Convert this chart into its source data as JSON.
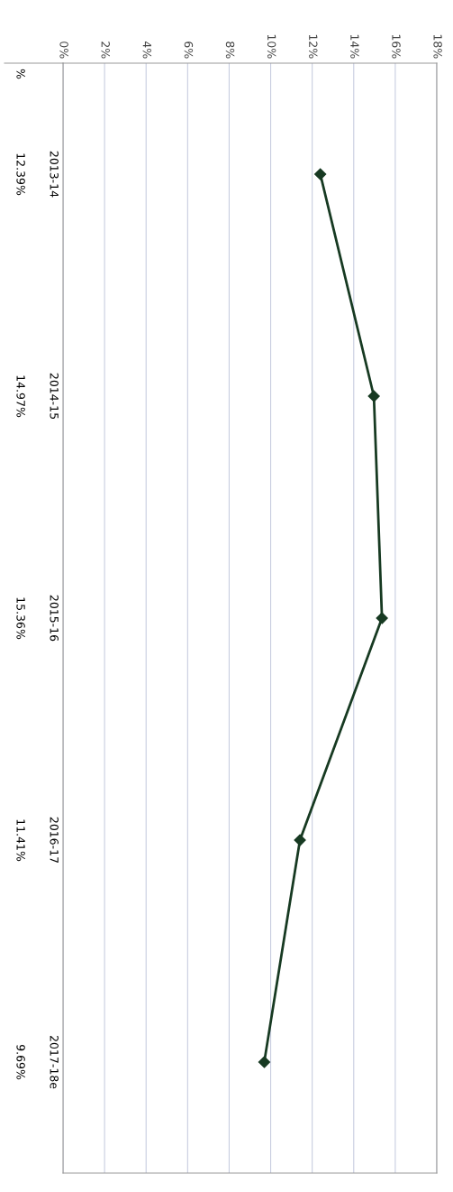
{
  "chart_data": {
    "type": "line",
    "categories": [
      "2013-14",
      "2014-15",
      "2015-16",
      "2016-17",
      "2017-18e"
    ],
    "series": [
      {
        "color": "#173a22",
        "values": [
          12.39,
          14.97,
          15.36,
          11.41,
          9.69
        ],
        "value_labels": [
          "12.39%",
          "14.97%",
          "15.36%",
          "11.41%",
          "9.69%"
        ]
      }
    ],
    "xlim": [
      0,
      18
    ],
    "xticks": [
      {
        "value": 0,
        "label": "0%"
      },
      {
        "value": 2,
        "label": "2%"
      },
      {
        "value": 4,
        "label": "4%"
      },
      {
        "value": 6,
        "label": "6%"
      },
      {
        "value": 8,
        "label": "8%"
      },
      {
        "value": 10,
        "label": "10%"
      },
      {
        "value": 12,
        "label": "12%"
      },
      {
        "value": 14,
        "label": "14%"
      },
      {
        "value": 16,
        "label": "16%"
      },
      {
        "value": 18,
        "label": "18%"
      }
    ],
    "annotations": [
      "%"
    ],
    "orientation": "horizontal",
    "grid": "x",
    "marker": "diamond",
    "line_style": "solid",
    "legend": false
  }
}
